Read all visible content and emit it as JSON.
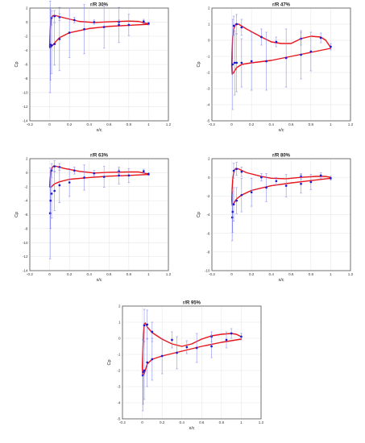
{
  "colors": {
    "curve": "#e8141b",
    "data": "#1b1bd6",
    "errbar": "#7c7cf0",
    "grid": "#e3e3e3"
  },
  "chart_data": [
    {
      "type": "line",
      "title": "r/R 30%",
      "xlabel": "x/c",
      "ylabel": "Cp",
      "xlim": [
        -0.2,
        1.2
      ],
      "ylim": [
        -14,
        2
      ],
      "xticks": [
        "-0.2",
        "0",
        "0.2",
        "0.4",
        "0.6",
        "0.8",
        "1",
        "1.2"
      ],
      "yticks": [
        "-14",
        "-12",
        "-10",
        "-8",
        "-6",
        "-4",
        "-2",
        "0",
        "2"
      ],
      "grid": true,
      "series": [
        {
          "kind": "curve",
          "points": [
            [
              1.0,
              -0.25
            ],
            [
              0.9,
              0.1
            ],
            [
              0.8,
              0.15
            ],
            [
              0.6,
              0.05
            ],
            [
              0.45,
              -0.05
            ],
            [
              0.3,
              0.1
            ],
            [
              0.15,
              0.6
            ],
            [
              0.07,
              0.9
            ],
            [
              0.04,
              0.95
            ],
            [
              0.025,
              0.8
            ],
            [
              0.015,
              0.3
            ],
            [
              0.008,
              -0.6
            ],
            [
              0.003,
              -2.0
            ],
            [
              0.0,
              -3.4
            ],
            [
              0.005,
              -3.7
            ],
            [
              0.01,
              -3.6
            ],
            [
              0.03,
              -3.3
            ],
            [
              0.06,
              -2.8
            ],
            [
              0.1,
              -2.2
            ],
            [
              0.2,
              -1.5
            ],
            [
              0.4,
              -0.9
            ],
            [
              0.6,
              -0.6
            ],
            [
              0.8,
              -0.45
            ],
            [
              1.0,
              -0.3
            ]
          ]
        },
        {
          "kind": "measured",
          "points": [
            [
              0.02,
              0.6
            ],
            [
              0.05,
              0.85
            ],
            [
              0.1,
              0.7
            ],
            [
              0.25,
              0.3
            ],
            [
              0.45,
              0.0
            ],
            [
              0.7,
              0.0
            ],
            [
              0.95,
              0.1
            ],
            [
              1.0,
              -0.2
            ],
            [
              0.005,
              -3.5
            ],
            [
              0.01,
              -3.2
            ],
            [
              0.02,
              -3.3
            ],
            [
              0.05,
              -3.1
            ],
            [
              0.1,
              -2.4
            ],
            [
              0.2,
              -1.5
            ],
            [
              0.35,
              -1.0
            ],
            [
              0.55,
              -0.7
            ],
            [
              0.7,
              -0.4
            ],
            [
              0.8,
              -0.4
            ]
          ],
          "errors": [
            1.0,
            0.8,
            0.5,
            0.4,
            0.3,
            0.3,
            0.3,
            0.2,
            6.5,
            5.0,
            4.0,
            3.0,
            4.5,
            3.5,
            3.5,
            3.0,
            2.5,
            1.5
          ]
        }
      ]
    },
    {
      "type": "line",
      "title": "r/R 47%",
      "xlabel": "x/c",
      "ylabel": "Cp",
      "xlim": [
        -0.2,
        1.2
      ],
      "ylim": [
        -5,
        2
      ],
      "xticks": [
        "-0.2",
        "0",
        "0.2",
        "0.4",
        "0.6",
        "0.8",
        "1",
        "1.2"
      ],
      "yticks": [
        "-5",
        "-4",
        "-3",
        "-2",
        "-1",
        "0",
        "1",
        "2"
      ],
      "grid": true,
      "series": [
        {
          "kind": "curve",
          "points": [
            [
              1.0,
              -0.45
            ],
            [
              0.95,
              0.0
            ],
            [
              0.9,
              0.2
            ],
            [
              0.8,
              0.25
            ],
            [
              0.7,
              0.1
            ],
            [
              0.6,
              -0.2
            ],
            [
              0.5,
              -0.2
            ],
            [
              0.4,
              -0.1
            ],
            [
              0.3,
              0.2
            ],
            [
              0.15,
              0.7
            ],
            [
              0.07,
              1.0
            ],
            [
              0.04,
              1.0
            ],
            [
              0.02,
              0.7
            ],
            [
              0.01,
              0.2
            ],
            [
              0.003,
              -0.8
            ],
            [
              0.0,
              -1.6
            ],
            [
              0.005,
              -2.1
            ],
            [
              0.02,
              -2.0
            ],
            [
              0.05,
              -1.7
            ],
            [
              0.1,
              -1.5
            ],
            [
              0.2,
              -1.4
            ],
            [
              0.4,
              -1.25
            ],
            [
              0.6,
              -1.0
            ],
            [
              0.8,
              -0.75
            ],
            [
              1.0,
              -0.5
            ]
          ]
        },
        {
          "kind": "measured",
          "points": [
            [
              0.02,
              0.9
            ],
            [
              0.05,
              1.0
            ],
            [
              0.1,
              0.8
            ],
            [
              0.3,
              0.2
            ],
            [
              0.45,
              -0.1
            ],
            [
              0.7,
              0.1
            ],
            [
              0.9,
              0.15
            ],
            [
              1.0,
              -0.4
            ],
            [
              0.01,
              -1.5
            ],
            [
              0.03,
              -1.4
            ],
            [
              0.05,
              -1.4
            ],
            [
              0.1,
              -1.4
            ],
            [
              0.2,
              -1.3
            ],
            [
              0.35,
              -1.3
            ],
            [
              0.55,
              -1.1
            ],
            [
              0.7,
              -0.9
            ],
            [
              0.8,
              -0.7
            ]
          ],
          "errors": [
            0.6,
            0.6,
            0.5,
            0.5,
            0.3,
            0.4,
            0.3,
            0.2,
            2.8,
            2.0,
            1.8,
            1.5,
            1.8,
            1.8,
            1.8,
            1.5,
            1.2
          ]
        }
      ]
    },
    {
      "type": "line",
      "title": "r/R 63%",
      "xlabel": "x/c",
      "ylabel": "Cp",
      "xlim": [
        -0.2,
        1.2
      ],
      "ylim": [
        -14,
        2
      ],
      "xticks": [
        "-0.2",
        "0",
        "0.2",
        "0.4",
        "0.6",
        "0.8",
        "1",
        "1.2"
      ],
      "yticks": [
        "-14",
        "-12",
        "-10",
        "-8",
        "-6",
        "-4",
        "-2",
        "0",
        "2"
      ],
      "grid": true,
      "series": [
        {
          "kind": "curve",
          "points": [
            [
              1.0,
              -0.2
            ],
            [
              0.9,
              0.1
            ],
            [
              0.8,
              0.1
            ],
            [
              0.6,
              0.05
            ],
            [
              0.45,
              -0.05
            ],
            [
              0.3,
              0.2
            ],
            [
              0.15,
              0.6
            ],
            [
              0.07,
              0.9
            ],
            [
              0.04,
              0.95
            ],
            [
              0.025,
              0.7
            ],
            [
              0.012,
              0.0
            ],
            [
              0.004,
              -1.0
            ],
            [
              0.0,
              -2.0
            ],
            [
              0.005,
              -2.1
            ],
            [
              0.02,
              -2.0
            ],
            [
              0.05,
              -1.6
            ],
            [
              0.1,
              -1.3
            ],
            [
              0.2,
              -0.95
            ],
            [
              0.4,
              -0.7
            ],
            [
              0.6,
              -0.5
            ],
            [
              0.8,
              -0.4
            ],
            [
              1.0,
              -0.25
            ]
          ]
        },
        {
          "kind": "measured",
          "points": [
            [
              0.02,
              0.3
            ],
            [
              0.05,
              0.9
            ],
            [
              0.1,
              0.8
            ],
            [
              0.25,
              0.3
            ],
            [
              0.45,
              -0.1
            ],
            [
              0.7,
              0.2
            ],
            [
              0.95,
              0.2
            ],
            [
              1.0,
              -0.2
            ],
            [
              0.005,
              -5.8
            ],
            [
              0.01,
              -4.0
            ],
            [
              0.02,
              -3.0
            ],
            [
              0.05,
              -2.6
            ],
            [
              0.1,
              -1.8
            ],
            [
              0.2,
              -1.4
            ],
            [
              0.35,
              -0.7
            ],
            [
              0.55,
              -0.6
            ],
            [
              0.7,
              -0.4
            ],
            [
              0.8,
              -0.4
            ]
          ],
          "errors": [
            1.0,
            0.8,
            0.5,
            0.5,
            0.4,
            0.3,
            0.3,
            0.2,
            6.5,
            4.0,
            3.5,
            2.8,
            2.5,
            2.0,
            1.8,
            1.5,
            1.2,
            1.0
          ]
        }
      ]
    },
    {
      "type": "line",
      "title": "r/R 80%",
      "xlabel": "x/c",
      "ylabel": "Cp",
      "xlim": [
        -0.2,
        1.2
      ],
      "ylim": [
        -10,
        2
      ],
      "xticks": [
        "-0.2",
        "0",
        "0.2",
        "0.4",
        "0.6",
        "0.8",
        "1",
        "1.2"
      ],
      "yticks": [
        "-10",
        "-8",
        "-6",
        "-4",
        "-2",
        "0",
        "2"
      ],
      "grid": true,
      "series": [
        {
          "kind": "curve",
          "points": [
            [
              1.0,
              0.0
            ],
            [
              0.95,
              0.1
            ],
            [
              0.85,
              0.1
            ],
            [
              0.7,
              0.0
            ],
            [
              0.55,
              -0.15
            ],
            [
              0.4,
              -0.1
            ],
            [
              0.3,
              0.1
            ],
            [
              0.15,
              0.5
            ],
            [
              0.07,
              0.9
            ],
            [
              0.04,
              0.95
            ],
            [
              0.025,
              0.7
            ],
            [
              0.012,
              0.0
            ],
            [
              0.004,
              -1.3
            ],
            [
              0.0,
              -2.4
            ],
            [
              0.005,
              -3.0
            ],
            [
              0.02,
              -2.8
            ],
            [
              0.05,
              -2.3
            ],
            [
              0.1,
              -1.9
            ],
            [
              0.2,
              -1.4
            ],
            [
              0.4,
              -0.9
            ],
            [
              0.6,
              -0.6
            ],
            [
              0.8,
              -0.35
            ],
            [
              1.0,
              -0.1
            ]
          ]
        },
        {
          "kind": "measured",
          "points": [
            [
              0.02,
              0.7
            ],
            [
              0.05,
              0.9
            ],
            [
              0.1,
              0.6
            ],
            [
              0.3,
              0.0
            ],
            [
              0.45,
              -0.4
            ],
            [
              0.7,
              0.1
            ],
            [
              0.9,
              0.2
            ],
            [
              1.0,
              -0.1
            ],
            [
              0.005,
              -4.3
            ],
            [
              0.01,
              -3.7
            ],
            [
              0.02,
              -2.9
            ],
            [
              0.05,
              -2.5
            ],
            [
              0.1,
              -1.9
            ],
            [
              0.2,
              -1.6
            ],
            [
              0.35,
              -1.1
            ],
            [
              0.55,
              -0.9
            ],
            [
              0.7,
              -0.7
            ],
            [
              0.8,
              -0.5
            ]
          ],
          "errors": [
            0.8,
            0.7,
            0.5,
            0.4,
            0.4,
            0.3,
            0.3,
            0.2,
            2.5,
            2.2,
            1.8,
            1.4,
            1.8,
            1.5,
            1.5,
            1.2,
            1.0,
            0.8
          ]
        }
      ]
    },
    {
      "type": "line",
      "title": "r/R 95%",
      "xlabel": "x/c",
      "ylabel": "Cp",
      "xlim": [
        -0.2,
        1.2
      ],
      "ylim": [
        -5,
        2
      ],
      "xticks": [
        "-0.2",
        "0",
        "0.2",
        "0.4",
        "0.6",
        "0.8",
        "1",
        "1.2"
      ],
      "yticks": [
        "-5",
        "-4",
        "-3",
        "-2",
        "-1",
        "0",
        "1",
        "2"
      ],
      "grid": true,
      "series": [
        {
          "kind": "curve",
          "points": [
            [
              1.0,
              0.1
            ],
            [
              0.95,
              0.25
            ],
            [
              0.9,
              0.3
            ],
            [
              0.8,
              0.25
            ],
            [
              0.7,
              0.15
            ],
            [
              0.6,
              -0.05
            ],
            [
              0.5,
              -0.35
            ],
            [
              0.4,
              -0.5
            ],
            [
              0.3,
              -0.35
            ],
            [
              0.2,
              -0.05
            ],
            [
              0.1,
              0.35
            ],
            [
              0.05,
              0.7
            ],
            [
              0.03,
              0.95
            ],
            [
              0.02,
              0.9
            ],
            [
              0.012,
              0.2
            ],
            [
              0.005,
              -0.9
            ],
            [
              0.0,
              -1.8
            ],
            [
              0.005,
              -2.3
            ],
            [
              0.02,
              -2.2
            ],
            [
              0.05,
              -1.6
            ],
            [
              0.1,
              -1.3
            ],
            [
              0.2,
              -1.1
            ],
            [
              0.4,
              -0.8
            ],
            [
              0.6,
              -0.5
            ],
            [
              0.8,
              -0.25
            ],
            [
              1.0,
              -0.05
            ]
          ]
        },
        {
          "kind": "measured",
          "points": [
            [
              0.02,
              0.8
            ],
            [
              0.05,
              0.85
            ],
            [
              0.1,
              0.4
            ],
            [
              0.3,
              -0.1
            ],
            [
              0.45,
              -0.55
            ],
            [
              0.7,
              0.1
            ],
            [
              0.9,
              0.3
            ],
            [
              1.0,
              0.1
            ],
            [
              0.005,
              -2.3
            ],
            [
              0.01,
              -2.1
            ],
            [
              0.02,
              -2.0
            ],
            [
              0.05,
              -1.5
            ],
            [
              0.1,
              -1.3
            ],
            [
              0.2,
              -1.1
            ],
            [
              0.35,
              -0.9
            ],
            [
              0.55,
              -0.6
            ],
            [
              0.7,
              -0.5
            ],
            [
              0.85,
              -0.1
            ]
          ],
          "errors": [
            1.0,
            0.9,
            0.6,
            0.5,
            0.4,
            0.3,
            0.3,
            0.2,
            2.2,
            2.0,
            1.8,
            1.5,
            1.3,
            1.1,
            1.0,
            0.9,
            0.7,
            0.5
          ]
        }
      ]
    }
  ]
}
